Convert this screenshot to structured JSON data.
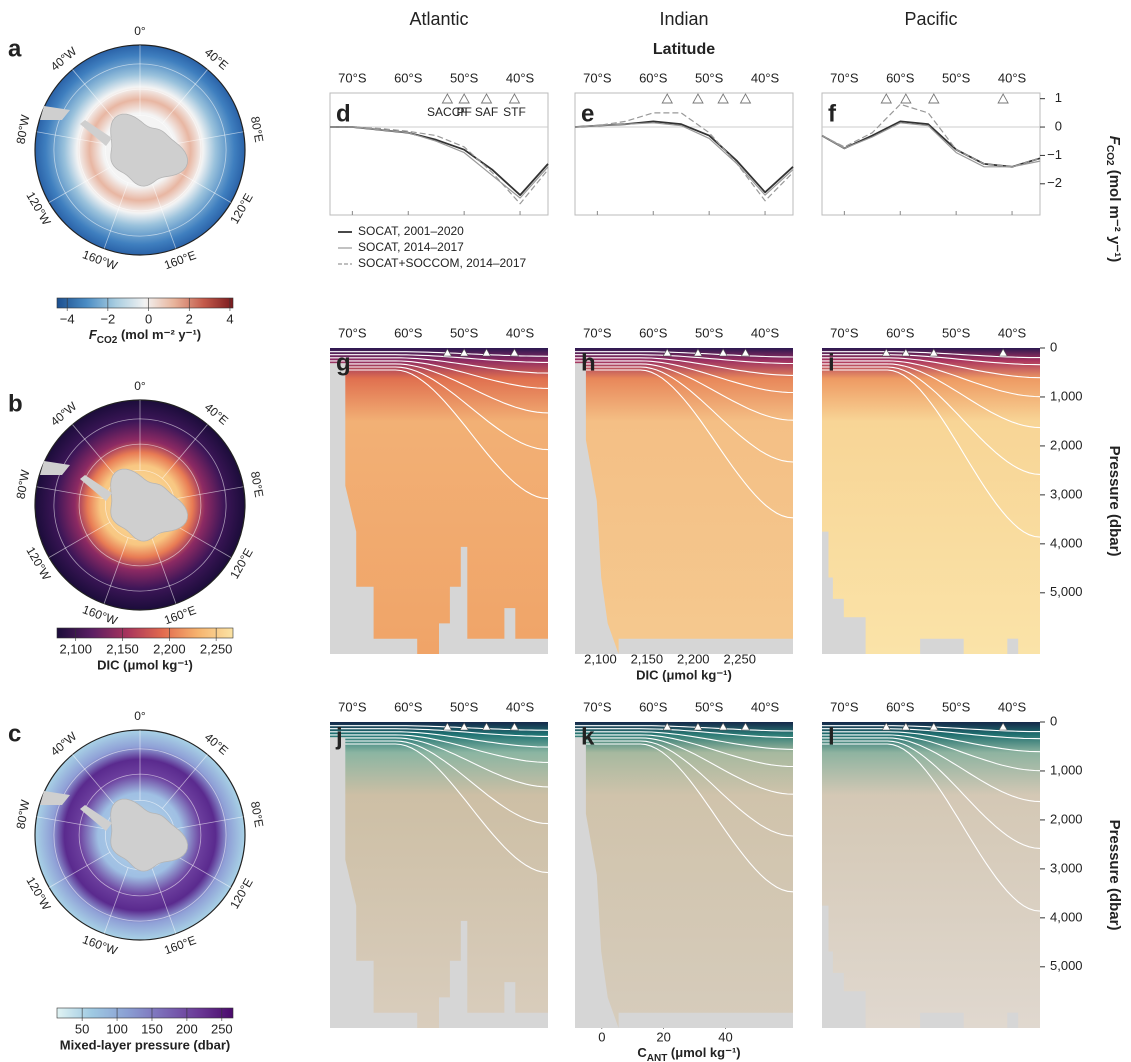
{
  "columns": [
    "Atlantic",
    "Indian",
    "Pacific"
  ],
  "latitude_label": "Latitude",
  "maps": [
    {
      "letter": "a",
      "lon_labels": [
        "0°",
        "40°E",
        "80°E",
        "120°E",
        "160°E",
        "160°W",
        "120°W",
        "80°W",
        "40°W"
      ]
    },
    {
      "letter": "b",
      "lon_labels": [
        "0°",
        "40°E",
        "80°E",
        "120°E",
        "160°E",
        "160°W",
        "120°W",
        "80°W",
        "40°W"
      ]
    },
    {
      "letter": "c",
      "lon_labels": [
        "0°",
        "40°E",
        "80°E",
        "120°E",
        "160°E",
        "160°W",
        "120°W",
        "80°W",
        "40°W"
      ]
    }
  ],
  "colorbars": [
    {
      "lim": [
        -4.5,
        4.15
      ],
      "ticks": [
        {
          "value": -4,
          "label": "−4"
        },
        {
          "value": -2,
          "label": "−2"
        },
        0,
        2,
        4
      ],
      "colors": [
        "#1c4f8f",
        "#4a8cc4",
        "#a8cde0",
        "#f2f2f2",
        "#e8b39a",
        "#c45a4a",
        "#7a1a1e"
      ],
      "label": [
        {
          "text": "F",
          "italic": true
        },
        {
          "text": "CO2",
          "sub": true
        },
        {
          "text": " (mol m⁻² y⁻¹)"
        }
      ]
    },
    {
      "lim": [
        2080,
        2268
      ],
      "ticks": [
        {
          "value": 2100,
          "label": "2,100"
        },
        {
          "value": 2150,
          "label": "2,150"
        },
        {
          "value": 2200,
          "label": "2,200"
        },
        {
          "value": 2250,
          "label": "2,250"
        }
      ],
      "colors": [
        "#1b0c3a",
        "#5b1e63",
        "#a8345c",
        "#e26a4e",
        "#f6b36e",
        "#fbe3a5"
      ],
      "label": "DIC (μmol kg⁻¹)"
    },
    {
      "lim": [
        14,
        266
      ],
      "ticks": [
        50,
        100,
        150,
        200,
        250
      ],
      "colors": [
        "#e0f3f3",
        "#9ec9e2",
        "#8a9fd3",
        "#7b6bb8",
        "#6b3a97",
        "#4a0a6b"
      ],
      "label": "Mixed-layer pressure (dbar)"
    },
    {
      "lim": [
        2092,
        2288
      ],
      "ticks": [
        {
          "value": 2100,
          "label": "2,100"
        },
        {
          "value": 2150,
          "label": "2,150"
        },
        {
          "value": 2200,
          "label": "2,200"
        },
        {
          "value": 2250,
          "label": "2,250"
        }
      ],
      "colors": [
        "#1b0c3a",
        "#5b1e63",
        "#a8345c",
        "#e26a4e",
        "#f6b36e",
        "#fbe3a5"
      ],
      "label": "DIC (μmol kg⁻¹)"
    },
    {
      "lim": [
        -0.6,
        57
      ],
      "ticks": [
        0,
        20,
        40
      ],
      "colors": [
        "#f2ebe3",
        "#c9bea5",
        "#8faa8a",
        "#3d8a7f",
        "#205f73",
        "#1a2a4a"
      ],
      "label": [
        {
          "text": "C"
        },
        {
          "text": "ANT",
          "sub": true
        },
        {
          "text": " (μmol kg⁻¹)"
        }
      ]
    }
  ],
  "chart_data": [
    {
      "type": "line",
      "letter": "d",
      "xlim": [
        -74,
        -35
      ],
      "ylim": [
        -3.1,
        1.2
      ],
      "xticks": [
        {
          "value": -70,
          "label": "70°S"
        },
        {
          "value": -60,
          "label": "60°S"
        },
        {
          "value": -50,
          "label": "50°S"
        },
        {
          "value": -40,
          "label": "40°S"
        }
      ],
      "x": [
        -74,
        -70,
        -65,
        -60,
        -55,
        -50,
        -45,
        -40,
        -35
      ],
      "series": [
        {
          "name": "SOCAT, 2001–2020",
          "color": "#333333",
          "dash": false,
          "values": [
            0,
            0,
            -0.1,
            -0.2,
            -0.45,
            -0.8,
            -1.5,
            -2.4,
            -1.3
          ]
        },
        {
          "name": "SOCAT, 2014–2017",
          "color": "#999999",
          "dash": false,
          "values": [
            0,
            0,
            -0.1,
            -0.2,
            -0.5,
            -0.9,
            -1.7,
            -2.5,
            -1.4
          ]
        },
        {
          "name": "SOCAT+SOCCOM, 2014–2017",
          "color": "#999999",
          "dash": true,
          "values": [
            0,
            0,
            -0.05,
            -0.15,
            -0.3,
            -0.7,
            -1.6,
            -2.7,
            -1.5
          ]
        }
      ],
      "fronts": {
        "values": [
          -53,
          -50,
          -46,
          -41
        ],
        "labels": [
          "SACCF",
          "PF",
          "SAF",
          "STF"
        ]
      }
    },
    {
      "type": "line",
      "letter": "e",
      "xlim": [
        -74,
        -35
      ],
      "ylim": [
        -3.1,
        1.2
      ],
      "xticks": [
        {
          "value": -70,
          "label": "70°S"
        },
        {
          "value": -60,
          "label": "60°S"
        },
        {
          "value": -50,
          "label": "50°S"
        },
        {
          "value": -40,
          "label": "40°S"
        }
      ],
      "x": [
        -74,
        -70,
        -65,
        -60,
        -55,
        -50,
        -45,
        -40,
        -35
      ],
      "series": [
        {
          "color": "#333333",
          "dash": false,
          "values": [
            0,
            0.05,
            0.1,
            0.2,
            0.1,
            -0.3,
            -1.2,
            -2.3,
            -1.4
          ]
        },
        {
          "color": "#999999",
          "dash": false,
          "values": [
            0,
            0.05,
            0.1,
            0.15,
            0.05,
            -0.4,
            -1.3,
            -2.4,
            -1.5
          ]
        },
        {
          "color": "#999999",
          "dash": true,
          "values": [
            0,
            0.05,
            0.2,
            0.5,
            0.5,
            -0.2,
            -1.3,
            -2.6,
            -1.6
          ]
        }
      ],
      "fronts": {
        "values": [
          -57.5,
          -52,
          -47.5,
          -43.5
        ]
      }
    },
    {
      "type": "line",
      "letter": "f",
      "xlim": [
        -74,
        -35
      ],
      "ylim": [
        -3.1,
        1.2
      ],
      "xticks": [
        {
          "value": -70,
          "label": "70°S"
        },
        {
          "value": -60,
          "label": "60°S"
        },
        {
          "value": -50,
          "label": "50°S"
        },
        {
          "value": -40,
          "label": "40°S"
        }
      ],
      "yticks": [
        1,
        0,
        {
          "value": -1,
          "label": "−1"
        },
        {
          "value": -2,
          "label": "−2"
        }
      ],
      "ylabel": [
        {
          "text": "F",
          "italic": true
        },
        {
          "text": "CO2",
          "sub": true
        },
        {
          "text": " (mol m⁻² y⁻¹)"
        }
      ],
      "x": [
        -74,
        -70,
        -65,
        -60,
        -55,
        -50,
        -45,
        -40,
        -35
      ],
      "series": [
        {
          "color": "#333333",
          "dash": false,
          "values": [
            -0.3,
            -0.75,
            -0.3,
            0.2,
            0.1,
            -0.8,
            -1.3,
            -1.4,
            -1.1
          ]
        },
        {
          "color": "#999999",
          "dash": false,
          "values": [
            -0.3,
            -0.75,
            -0.35,
            0.15,
            0.05,
            -0.9,
            -1.4,
            -1.4,
            -1.2
          ]
        },
        {
          "color": "#999999",
          "dash": true,
          "values": [
            -0.3,
            -0.7,
            -0.2,
            0.8,
            0.5,
            -0.8,
            -1.3,
            -1.4,
            -1.1
          ]
        }
      ],
      "fronts": {
        "values": [
          -62.5,
          -59,
          -54,
          -41.6
        ]
      }
    },
    {
      "type": "contour",
      "letter": "g",
      "xlim": [
        -74,
        -35
      ],
      "ylim": [
        6250,
        0
      ],
      "xticks": [
        {
          "value": -70,
          "label": "70°S"
        },
        {
          "value": -60,
          "label": "60°S"
        },
        {
          "value": -50,
          "label": "50°S"
        },
        {
          "value": -40,
          "label": "40°S"
        }
      ],
      "colors": [
        "#2a1850",
        "#8d2a63",
        "#e0704f",
        "#f2b075",
        "#f0a468"
      ],
      "fronts": {
        "values": [
          -53,
          -50,
          -46,
          -41
        ]
      }
    },
    {
      "type": "contour",
      "letter": "h",
      "xlim": [
        -74,
        -35
      ],
      "ylim": [
        6250,
        0
      ],
      "xticks": [
        {
          "value": -70,
          "label": "70°S"
        },
        {
          "value": -60,
          "label": "60°S"
        },
        {
          "value": -50,
          "label": "50°S"
        },
        {
          "value": -40,
          "label": "40°S"
        }
      ],
      "colors": [
        "#2a1850",
        "#9b2f62",
        "#e8875a",
        "#f4bf85",
        "#f5c98f"
      ],
      "fronts": {
        "values": [
          -57.5,
          -52,
          -47.5,
          -43.5
        ]
      }
    },
    {
      "type": "contour",
      "letter": "i",
      "xlim": [
        -74,
        -35
      ],
      "ylim": [
        6250,
        0
      ],
      "xticks": [
        {
          "value": -70,
          "label": "70°S"
        },
        {
          "value": -60,
          "label": "60°S"
        },
        {
          "value": -50,
          "label": "50°S"
        },
        {
          "value": -40,
          "label": "40°S"
        }
      ],
      "yticks": [
        0,
        {
          "value": 1000,
          "label": "1,000"
        },
        {
          "value": 2000,
          "label": "2,000"
        },
        {
          "value": 3000,
          "label": "3,000"
        },
        {
          "value": 4000,
          "label": "4,000"
        },
        {
          "value": 5000,
          "label": "5,000"
        }
      ],
      "ylabel": "Pressure (dbar)",
      "colors": [
        "#2a1850",
        "#a9335f",
        "#ee9a63",
        "#f8d596",
        "#fae3a8"
      ],
      "fronts": {
        "values": [
          -62.5,
          -59,
          -54,
          -41.6
        ]
      }
    },
    {
      "type": "contour",
      "letter": "j",
      "xlim": [
        -74,
        -35
      ],
      "ylim": [
        6250,
        0
      ],
      "xticks": [
        {
          "value": -70,
          "label": "70°S"
        },
        {
          "value": -60,
          "label": "60°S"
        },
        {
          "value": -50,
          "label": "50°S"
        },
        {
          "value": -40,
          "label": "40°S"
        }
      ],
      "colors": [
        "#15284a",
        "#1f7373",
        "#8bb5a2",
        "#cdbfa5",
        "#d9cdbd"
      ],
      "fronts": {
        "values": [
          -53,
          -50,
          -46,
          -41
        ]
      }
    },
    {
      "type": "contour",
      "letter": "k",
      "xlim": [
        -74,
        -35
      ],
      "ylim": [
        6250,
        0
      ],
      "xticks": [
        {
          "value": -70,
          "label": "70°S"
        },
        {
          "value": -60,
          "label": "60°S"
        },
        {
          "value": -50,
          "label": "50°S"
        },
        {
          "value": -40,
          "label": "40°S"
        }
      ],
      "colors": [
        "#15284a",
        "#2a7a75",
        "#a6b99f",
        "#d0c3ab",
        "#d6ccbc"
      ],
      "fronts": {
        "values": [
          -57.5,
          -52,
          -47.5,
          -43.5
        ]
      }
    },
    {
      "type": "contour",
      "letter": "l",
      "xlim": [
        -74,
        -35
      ],
      "ylim": [
        6250,
        0
      ],
      "xticks": [
        {
          "value": -70,
          "label": "70°S"
        },
        {
          "value": -60,
          "label": "60°S"
        },
        {
          "value": -50,
          "label": "50°S"
        },
        {
          "value": -40,
          "label": "40°S"
        }
      ],
      "yticks": [
        0,
        {
          "value": 1000,
          "label": "1,000"
        },
        {
          "value": 2000,
          "label": "2,000"
        },
        {
          "value": 3000,
          "label": "3,000"
        },
        {
          "value": 4000,
          "label": "4,000"
        },
        {
          "value": 5000,
          "label": "5,000"
        }
      ],
      "ylabel": "Pressure (dbar)",
      "colors": [
        "#15284a",
        "#1f6f6f",
        "#8eb3a0",
        "#d4c8b5",
        "#e0d8cf"
      ],
      "fronts": {
        "values": [
          -62.5,
          -59,
          -54,
          -41.6
        ]
      }
    }
  ]
}
